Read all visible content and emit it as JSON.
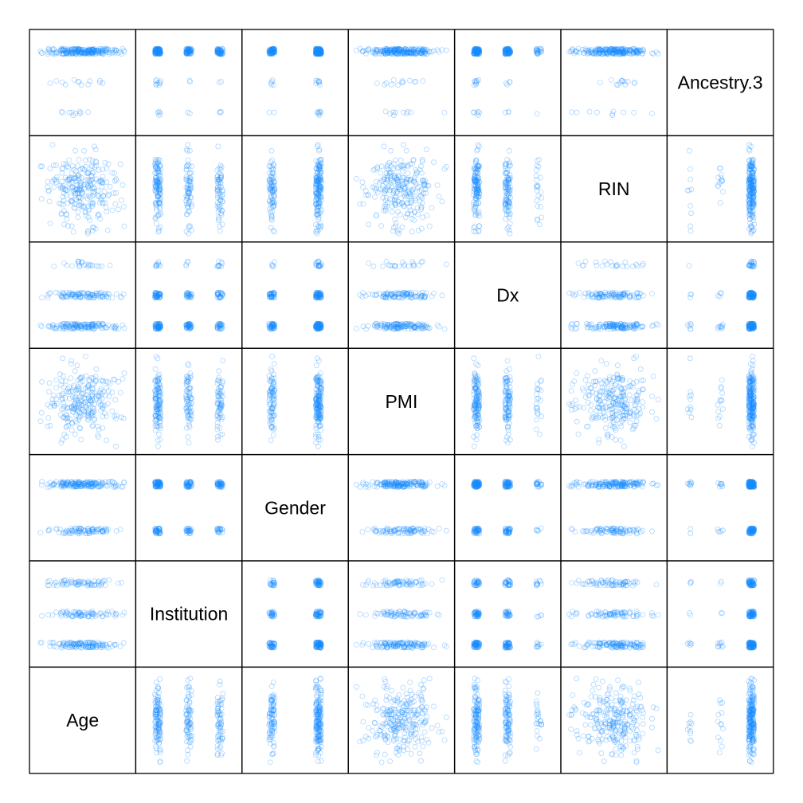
{
  "chart_data": {
    "type": "scatter",
    "title": "",
    "variables": [
      "Age",
      "Institution",
      "Gender",
      "PMI",
      "Dx",
      "RIN",
      "Ancestry.3"
    ],
    "layout_order": "first variable at bottom-left, diagonal runs to top-right",
    "point_color": "#1a8cff",
    "point_opacity": 0.35,
    "point_shape": "open-circle",
    "axes": "none shown",
    "grid": false,
    "variable_info": {
      "Age": {
        "kind": "continuous"
      },
      "Institution": {
        "kind": "categorical",
        "levels": 3,
        "level_weights": [
          0.45,
          0.25,
          0.3
        ]
      },
      "Gender": {
        "kind": "categorical",
        "levels": 2,
        "level_weights": [
          0.35,
          0.65
        ]
      },
      "PMI": {
        "kind": "continuous"
      },
      "Dx": {
        "kind": "categorical",
        "levels": 3,
        "level_weights": [
          0.45,
          0.42,
          0.13
        ]
      },
      "RIN": {
        "kind": "continuous"
      },
      "Ancestry.3": {
        "kind": "categorical",
        "levels": 3,
        "level_weights": [
          0.06,
          0.06,
          0.88
        ]
      }
    },
    "n_points_per_panel": 260
  }
}
